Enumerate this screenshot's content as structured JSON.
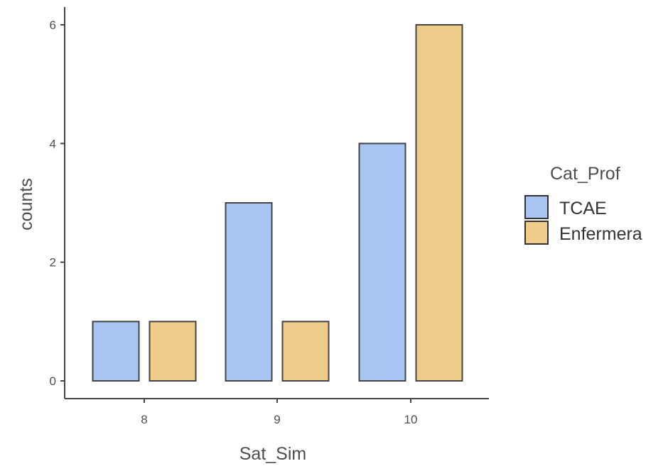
{
  "chart_data": {
    "type": "bar",
    "categories": [
      "8",
      "9",
      "10"
    ],
    "series": [
      {
        "name": "TCAE",
        "values": [
          1,
          3,
          4
        ],
        "color": "#a7c4f2"
      },
      {
        "name": "Enfermera",
        "values": [
          1,
          1,
          6
        ],
        "color": "#f0cc8a"
      }
    ],
    "xlabel": "Sat_Sim",
    "ylabel": "counts",
    "ylim": [
      0,
      6
    ],
    "yticks": [
      "0",
      "2",
      "4",
      "6"
    ],
    "legend_title": "Cat_Prof",
    "legend_position": "right",
    "grid": false,
    "bar_stroke_color": "#444444",
    "axis_color": "#444444"
  }
}
